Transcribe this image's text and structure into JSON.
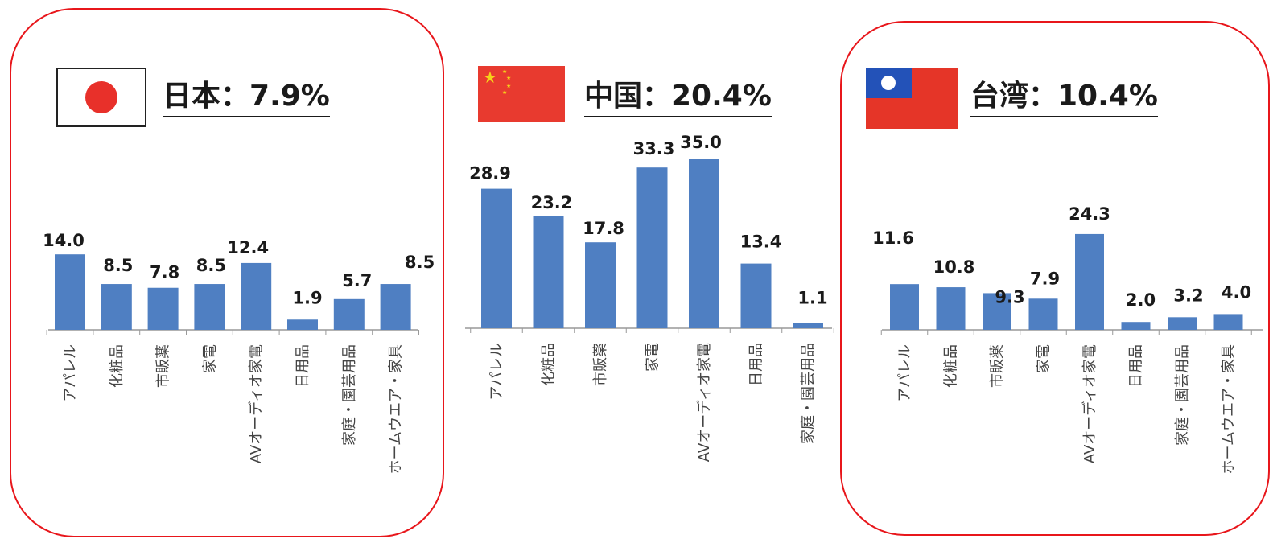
{
  "colors": {
    "bar": "#4f7fc2",
    "frame": "#e8161b",
    "axis": "#999999"
  },
  "chart_data": [
    {
      "type": "bar",
      "title": "日本：7.9%",
      "flag": "japan-flag",
      "framed": true,
      "categories": [
        "アパレル",
        "化粧品",
        "市販薬",
        "家電",
        "AVオーディオ家電",
        "日用品",
        "家庭・園芸用品",
        "ホームウエア・家具"
      ],
      "values": [
        14.0,
        8.5,
        7.8,
        8.5,
        12.4,
        1.9,
        5.7,
        8.5
      ],
      "value_labels": [
        "14.0",
        "8.5",
        "7.8",
        "8.5",
        "12.4",
        "1.9",
        "5.7",
        "8.5"
      ]
    },
    {
      "type": "bar",
      "title": "中国：20.4%",
      "flag": "china-flag",
      "framed": false,
      "categories": [
        "アパレル",
        "化粧品",
        "市販薬",
        "家電",
        "AVオーディオ家電",
        "日用品",
        "家庭・園芸用品"
      ],
      "values": [
        28.9,
        23.2,
        17.8,
        33.3,
        35.0,
        13.4,
        1.1
      ],
      "value_labels": [
        "28.9",
        "23.2",
        "17.8",
        "33.3",
        "35.0",
        "13.4",
        "1.1"
      ]
    },
    {
      "type": "bar",
      "title": "台湾：10.4%",
      "flag": "taiwan-flag",
      "framed": true,
      "categories": [
        "アパレル",
        "化粧品",
        "市販薬",
        "家電",
        "AVオーディオ家電",
        "日用品",
        "家庭・園芸用品",
        "ホームウエア・家具"
      ],
      "values": [
        11.6,
        10.8,
        9.3,
        7.9,
        24.3,
        2.0,
        3.2,
        4.0
      ],
      "value_labels": [
        "11.6",
        "10.8",
        "9.3",
        "7.9",
        "24.3",
        "2.0",
        "3.2",
        "4.0"
      ]
    }
  ]
}
